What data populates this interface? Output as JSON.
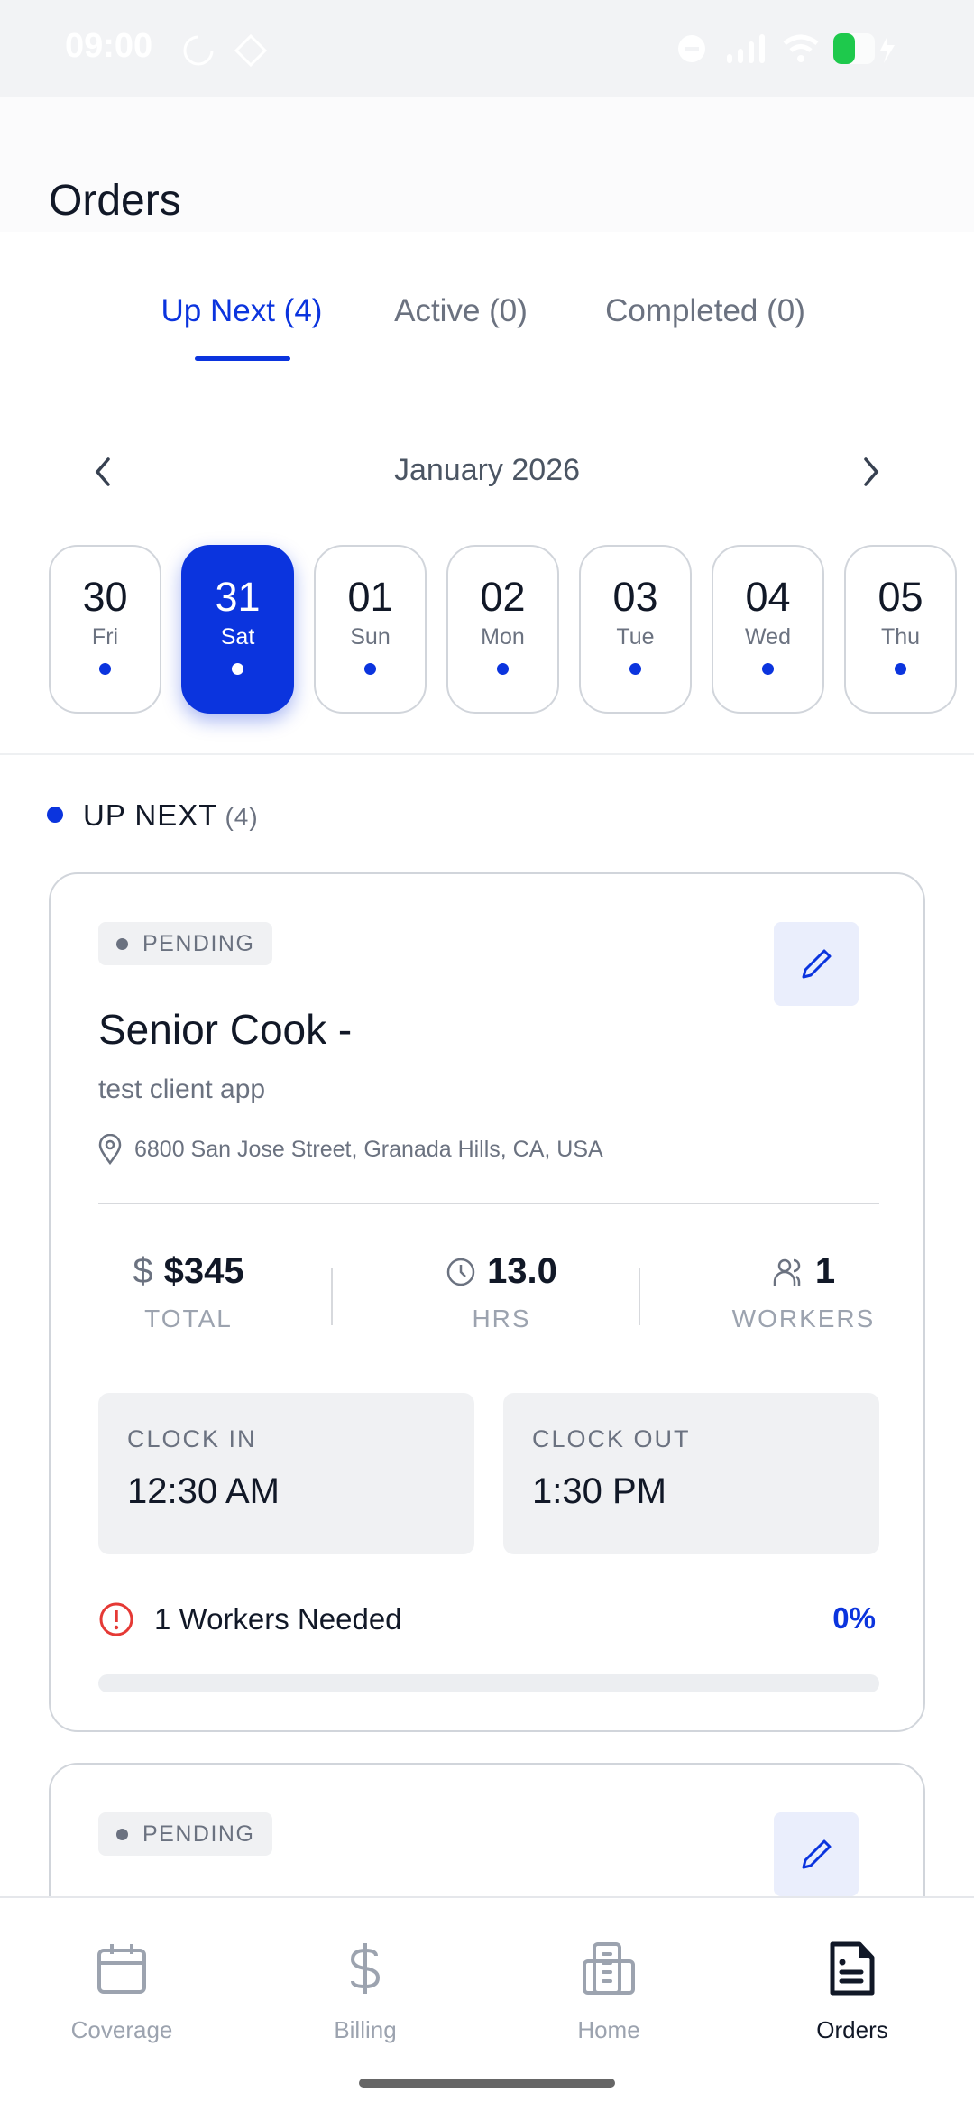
{
  "status_bar": {
    "time": "09:00",
    "battery_color": "#1ec94c"
  },
  "header": {
    "title": "Orders"
  },
  "tabs": [
    {
      "label": "Up Next (4)",
      "active": true
    },
    {
      "label": "Active (0)"
    },
    {
      "label": "Completed (0)"
    }
  ],
  "calendar": {
    "month": "January 2026",
    "days": [
      {
        "num": "30",
        "dow": "Fri"
      },
      {
        "num": "31",
        "dow": "Sat",
        "selected": true
      },
      {
        "num": "01",
        "dow": "Sun"
      },
      {
        "num": "02",
        "dow": "Mon"
      },
      {
        "num": "03",
        "dow": "Tue"
      },
      {
        "num": "04",
        "dow": "Wed"
      },
      {
        "num": "05",
        "dow": "Thu"
      }
    ]
  },
  "section": {
    "label": "UP NEXT",
    "count": "(4)"
  },
  "orders": [
    {
      "status": "PENDING",
      "title": "Senior Cook -",
      "client": "test client app",
      "address": "6800 San Jose Street, Granada Hills, CA, USA",
      "total": "$345",
      "total_label": "TOTAL",
      "hours": "13.0",
      "hours_label": "HRS",
      "workers": "1",
      "workers_label": "WORKERS",
      "clock_in_label": "CLOCK IN",
      "clock_in": "12:30 AM",
      "clock_out_label": "CLOCK OUT",
      "clock_out": "1:30 PM",
      "needed": "1 Workers Needed",
      "progress": "0%"
    },
    {
      "status": "PENDING"
    }
  ],
  "nav": [
    {
      "label": "Coverage",
      "icon": "calendar-icon"
    },
    {
      "label": "Billing",
      "icon": "dollar-icon"
    },
    {
      "label": "Home",
      "icon": "building-icon"
    },
    {
      "label": "Orders",
      "icon": "document-icon",
      "active": true
    }
  ],
  "colors": {
    "accent": "#0b34de",
    "error": "#e53935"
  }
}
